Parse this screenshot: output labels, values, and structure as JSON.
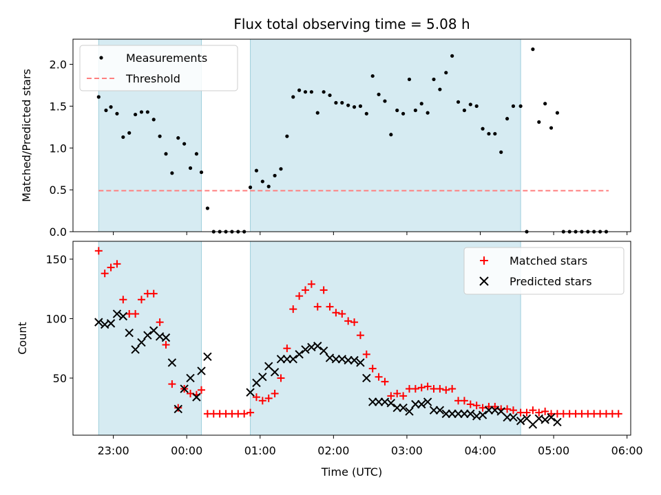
{
  "chart_data": [
    {
      "type": "scatter",
      "panel": "top",
      "title": "Flux total observing time = 5.08 h",
      "xlabel": "",
      "ylabel": "Matched/Predicted stars",
      "x_unit": "minutes since 23:00 UTC",
      "xlim": [
        -33,
        423
      ],
      "ylim": [
        0,
        2.3
      ],
      "yticks": [
        "0.0",
        "0.5",
        "1.0",
        "1.5",
        "2.0"
      ],
      "shaded_intervals": [
        [
          -12,
          72
        ],
        [
          112,
          333
        ]
      ],
      "legend": {
        "placement": "top-left",
        "entries": [
          "Measurements",
          "Threshold"
        ]
      },
      "threshold": {
        "name": "Threshold",
        "value": 0.49,
        "x_range": [
          -12,
          405
        ],
        "color": "#ff7f7f"
      },
      "series": [
        {
          "name": "Measurements",
          "color": "#000000",
          "points": [
            [
              -12,
              1.61
            ],
            [
              -6,
              1.45
            ],
            [
              -2,
              1.49
            ],
            [
              3,
              1.41
            ],
            [
              8,
              1.13
            ],
            [
              13,
              1.18
            ],
            [
              18,
              1.4
            ],
            [
              23,
              1.43
            ],
            [
              28,
              1.43
            ],
            [
              33,
              1.34
            ],
            [
              38,
              1.14
            ],
            [
              43,
              0.93
            ],
            [
              48,
              0.7
            ],
            [
              53,
              1.12
            ],
            [
              58,
              1.05
            ],
            [
              63,
              0.76
            ],
            [
              68,
              0.93
            ],
            [
              72,
              0.71
            ],
            [
              77,
              0.28
            ],
            [
              82,
              0
            ],
            [
              87,
              0
            ],
            [
              92,
              0
            ],
            [
              97,
              0
            ],
            [
              102,
              0
            ],
            [
              107,
              0
            ],
            [
              112,
              0.53
            ],
            [
              117,
              0.73
            ],
            [
              122,
              0.6
            ],
            [
              127,
              0.54
            ],
            [
              132,
              0.67
            ],
            [
              137,
              0.75
            ],
            [
              142,
              1.14
            ],
            [
              147,
              1.61
            ],
            [
              152,
              1.69
            ],
            [
              157,
              1.67
            ],
            [
              162,
              1.67
            ],
            [
              167,
              1.42
            ],
            [
              172,
              1.67
            ],
            [
              177,
              1.63
            ],
            [
              182,
              1.54
            ],
            [
              187,
              1.54
            ],
            [
              192,
              1.51
            ],
            [
              197,
              1.49
            ],
            [
              202,
              1.5
            ],
            [
              207,
              1.41
            ],
            [
              212,
              1.86
            ],
            [
              217,
              1.64
            ],
            [
              222,
              1.56
            ],
            [
              227,
              1.16
            ],
            [
              232,
              1.45
            ],
            [
              237,
              1.41
            ],
            [
              242,
              1.82
            ],
            [
              247,
              1.45
            ],
            [
              252,
              1.53
            ],
            [
              257,
              1.42
            ],
            [
              262,
              1.82
            ],
            [
              267,
              1.7
            ],
            [
              272,
              1.9
            ],
            [
              277,
              2.1
            ],
            [
              282,
              1.55
            ],
            [
              287,
              1.45
            ],
            [
              292,
              1.52
            ],
            [
              297,
              1.5
            ],
            [
              302,
              1.23
            ],
            [
              307,
              1.17
            ],
            [
              312,
              1.17
            ],
            [
              317,
              0.95
            ],
            [
              322,
              1.35
            ],
            [
              327,
              1.5
            ],
            [
              333,
              1.5
            ],
            [
              338,
              0
            ],
            [
              343,
              2.18
            ],
            [
              348,
              1.31
            ],
            [
              353,
              1.53
            ],
            [
              358,
              1.24
            ],
            [
              363,
              1.42
            ],
            [
              368,
              0
            ],
            [
              373,
              0
            ],
            [
              378,
              0
            ],
            [
              383,
              0
            ],
            [
              388,
              0
            ],
            [
              393,
              0
            ],
            [
              398,
              0
            ],
            [
              403,
              0
            ]
          ]
        }
      ]
    },
    {
      "type": "scatter",
      "panel": "bottom",
      "xlabel": "Time (UTC)",
      "ylabel": "Count",
      "x_unit": "minutes since 23:00 UTC",
      "xlim": [
        -33,
        423
      ],
      "ylim": [
        2,
        165
      ],
      "xticks": [
        {
          "value": 0,
          "label": "23:00"
        },
        {
          "value": 60,
          "label": "00:00"
        },
        {
          "value": 120,
          "label": "01:00"
        },
        {
          "value": 180,
          "label": "02:00"
        },
        {
          "value": 240,
          "label": "03:00"
        },
        {
          "value": 300,
          "label": "04:00"
        },
        {
          "value": 360,
          "label": "05:00"
        },
        {
          "value": 420,
          "label": "06:00"
        }
      ],
      "yticks": [
        50,
        100,
        150
      ],
      "shaded_intervals": [
        [
          -12,
          72
        ],
        [
          112,
          333
        ]
      ],
      "legend": {
        "placement": "top-right",
        "entries": [
          "Matched stars",
          "Predicted stars"
        ]
      },
      "series": [
        {
          "name": "Matched stars",
          "marker": "+",
          "color": "#ff0000",
          "points": [
            [
              -12,
              157
            ],
            [
              -7,
              138
            ],
            [
              -2,
              143
            ],
            [
              3,
              146
            ],
            [
              8,
              116
            ],
            [
              13,
              104
            ],
            [
              18,
              104
            ],
            [
              23,
              116
            ],
            [
              28,
              121
            ],
            [
              33,
              121
            ],
            [
              38,
              97
            ],
            [
              43,
              78
            ],
            [
              48,
              45
            ],
            [
              53,
              25
            ],
            [
              58,
              41
            ],
            [
              63,
              37
            ],
            [
              68,
              36
            ],
            [
              72,
              40
            ],
            [
              77,
              20
            ],
            [
              82,
              20
            ],
            [
              87,
              20
            ],
            [
              92,
              20
            ],
            [
              97,
              20
            ],
            [
              102,
              20
            ],
            [
              107,
              20
            ],
            [
              112,
              21
            ],
            [
              117,
              34
            ],
            [
              122,
              31
            ],
            [
              127,
              33
            ],
            [
              132,
              37
            ],
            [
              137,
              50
            ],
            [
              142,
              75
            ],
            [
              147,
              108
            ],
            [
              152,
              119
            ],
            [
              157,
              124
            ],
            [
              162,
              129
            ],
            [
              167,
              110
            ],
            [
              172,
              124
            ],
            [
              177,
              110
            ],
            [
              182,
              105
            ],
            [
              187,
              104
            ],
            [
              192,
              98
            ],
            [
              197,
              97
            ],
            [
              202,
              86
            ],
            [
              207,
              70
            ],
            [
              212,
              58
            ],
            [
              217,
              51
            ],
            [
              222,
              47
            ],
            [
              227,
              35
            ],
            [
              232,
              37
            ],
            [
              237,
              35
            ],
            [
              242,
              41
            ],
            [
              247,
              41
            ],
            [
              252,
              42
            ],
            [
              257,
              43
            ],
            [
              262,
              41
            ],
            [
              267,
              41
            ],
            [
              272,
              40
            ],
            [
              277,
              41
            ],
            [
              282,
              31
            ],
            [
              287,
              31
            ],
            [
              292,
              28
            ],
            [
              297,
              27
            ],
            [
              302,
              25
            ],
            [
              307,
              26
            ],
            [
              312,
              26
            ],
            [
              317,
              24
            ],
            [
              322,
              24
            ],
            [
              327,
              23
            ],
            [
              333,
              21
            ],
            [
              338,
              21
            ],
            [
              343,
              23
            ],
            [
              348,
              21
            ],
            [
              353,
              22
            ],
            [
              358,
              20
            ],
            [
              363,
              20
            ],
            [
              368,
              20
            ],
            [
              373,
              20
            ],
            [
              378,
              20
            ],
            [
              383,
              20
            ],
            [
              388,
              20
            ],
            [
              393,
              20
            ],
            [
              398,
              20
            ],
            [
              403,
              20
            ],
            [
              408,
              20
            ],
            [
              413,
              20
            ]
          ]
        },
        {
          "name": "Predicted stars",
          "marker": "x",
          "color": "#000000",
          "points": [
            [
              -12,
              97
            ],
            [
              -7,
              95
            ],
            [
              -2,
              96
            ],
            [
              3,
              104
            ],
            [
              8,
              102
            ],
            [
              13,
              88
            ],
            [
              18,
              74
            ],
            [
              23,
              80
            ],
            [
              28,
              86
            ],
            [
              33,
              90
            ],
            [
              38,
              85
            ],
            [
              43,
              84
            ],
            [
              48,
              63
            ],
            [
              53,
              24
            ],
            [
              58,
              41
            ],
            [
              63,
              50
            ],
            [
              68,
              34
            ],
            [
              72,
              56
            ],
            [
              77,
              68
            ],
            [
              112,
              38
            ],
            [
              117,
              46
            ],
            [
              122,
              51
            ],
            [
              127,
              60
            ],
            [
              132,
              55
            ],
            [
              137,
              66
            ],
            [
              142,
              66
            ],
            [
              147,
              66
            ],
            [
              152,
              70
            ],
            [
              157,
              74
            ],
            [
              162,
              76
            ],
            [
              167,
              77
            ],
            [
              172,
              73
            ],
            [
              177,
              67
            ],
            [
              182,
              66
            ],
            [
              187,
              66
            ],
            [
              192,
              65
            ],
            [
              197,
              65
            ],
            [
              202,
              63
            ],
            [
              207,
              50
            ],
            [
              212,
              30
            ],
            [
              217,
              30
            ],
            [
              222,
              30
            ],
            [
              227,
              29
            ],
            [
              232,
              25
            ],
            [
              237,
              25
            ],
            [
              242,
              22
            ],
            [
              247,
              28
            ],
            [
              252,
              28
            ],
            [
              257,
              30
            ],
            [
              262,
              23
            ],
            [
              267,
              23
            ],
            [
              272,
              20
            ],
            [
              277,
              20
            ],
            [
              282,
              20
            ],
            [
              287,
              20
            ],
            [
              292,
              20
            ],
            [
              297,
              18
            ],
            [
              302,
              19
            ],
            [
              307,
              23
            ],
            [
              312,
              23
            ],
            [
              317,
              22
            ],
            [
              322,
              17
            ],
            [
              327,
              17
            ],
            [
              333,
              14
            ],
            [
              338,
              16
            ],
            [
              343,
              11
            ],
            [
              348,
              16
            ],
            [
              353,
              15
            ],
            [
              358,
              17
            ],
            [
              363,
              13
            ]
          ]
        }
      ]
    }
  ]
}
